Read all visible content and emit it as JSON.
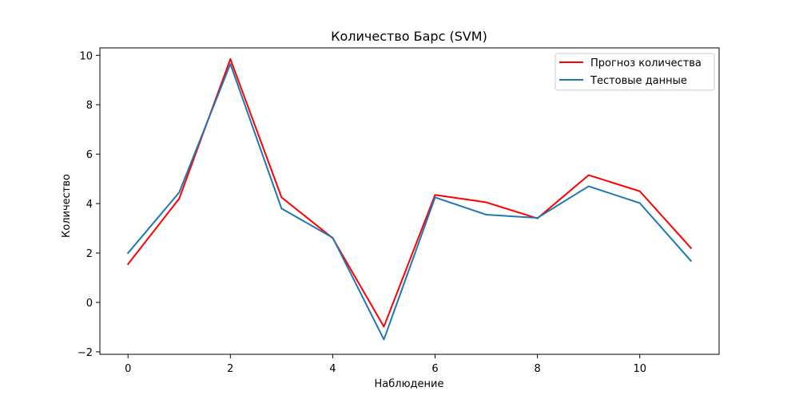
{
  "chart_data": {
    "type": "line",
    "title": "Количество Барс  (SVM)",
    "xlabel": "Наблюдение",
    "ylabel": "Количество",
    "x": [
      0,
      1,
      2,
      3,
      4,
      5,
      6,
      7,
      8,
      9,
      10,
      11
    ],
    "xlim": [
      -0.55,
      11.55
    ],
    "ylim": [
      -2.1,
      10.3
    ],
    "xticks": [
      0,
      2,
      4,
      6,
      8,
      10
    ],
    "yticks": [
      -2,
      0,
      2,
      4,
      6,
      8,
      10
    ],
    "xtick_labels": [
      "0",
      "2",
      "4",
      "6",
      "8",
      "10"
    ],
    "ytick_labels": [
      "−2",
      "0",
      "2",
      "4",
      "6",
      "8",
      "10"
    ],
    "grid": false,
    "legend_position": "top-right",
    "series": [
      {
        "name": "Прогноз количества",
        "color": "#ff0000",
        "values": [
          1.55,
          4.2,
          9.85,
          4.25,
          2.6,
          -0.98,
          4.35,
          4.05,
          3.4,
          5.15,
          4.5,
          2.2
        ]
      },
      {
        "name": "Тестовые данные",
        "color": "#1f77b4",
        "values": [
          2.0,
          4.45,
          9.65,
          3.8,
          2.62,
          -1.5,
          4.25,
          3.55,
          3.42,
          4.7,
          4.02,
          1.68
        ]
      }
    ]
  }
}
